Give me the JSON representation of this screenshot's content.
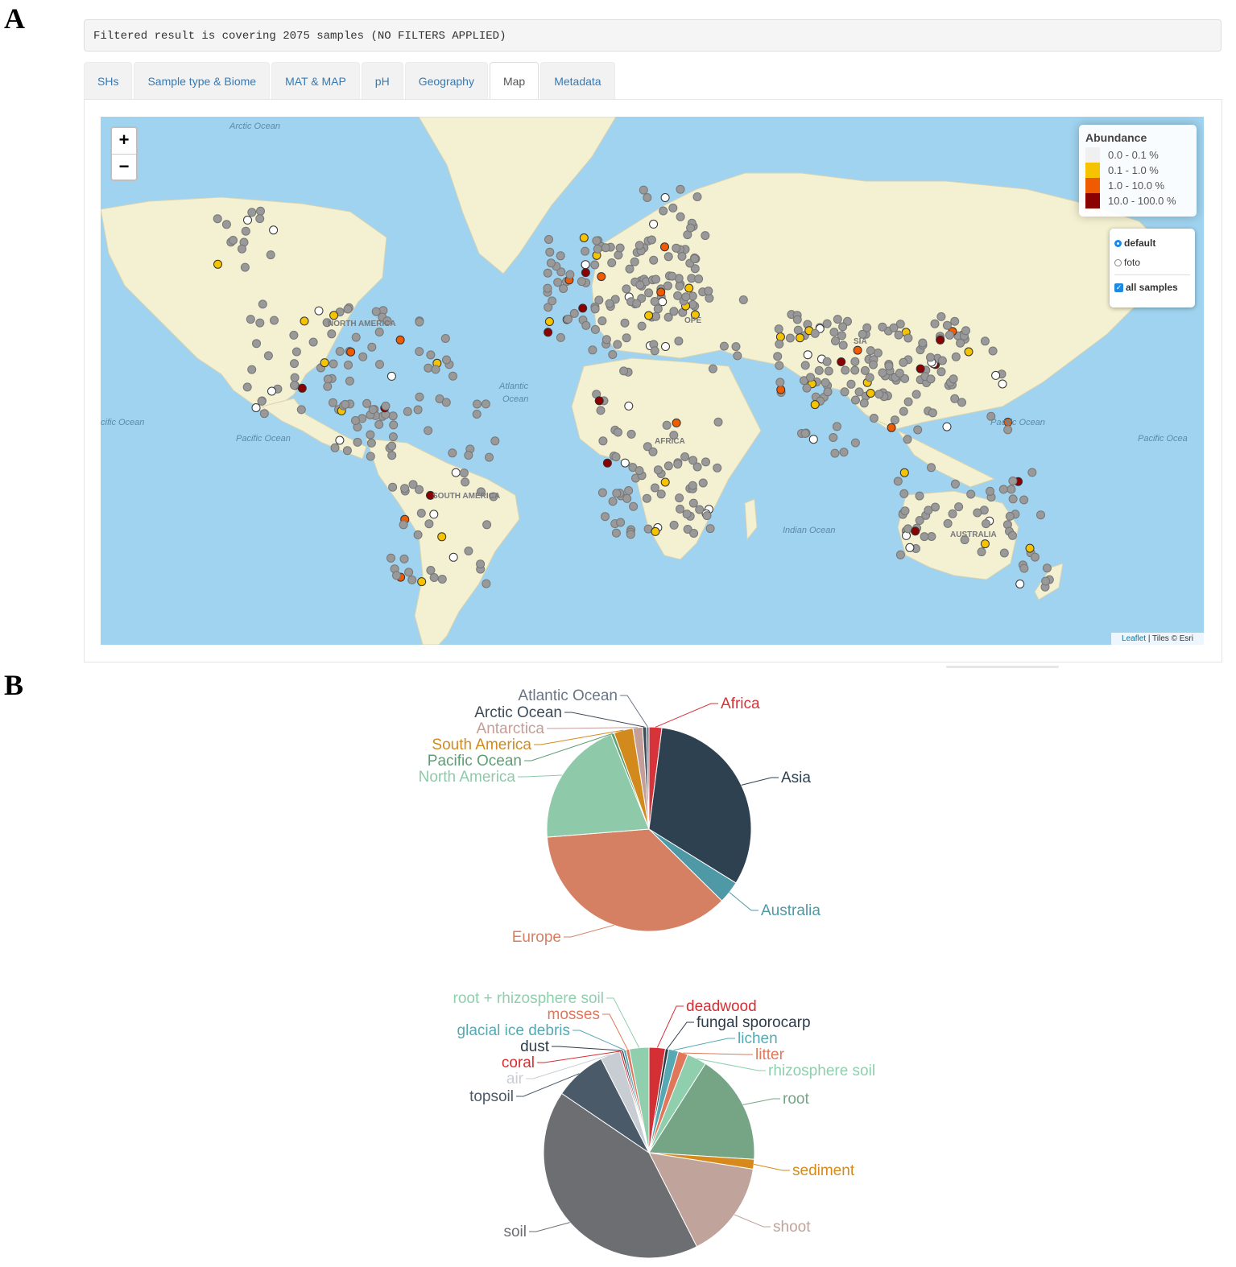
{
  "panels": {
    "a": "A",
    "b": "B"
  },
  "filter": {
    "text": "Filtered result is covering 2075 samples (NO FILTERS APPLIED)"
  },
  "tabs": [
    {
      "label": "SHs",
      "active": false
    },
    {
      "label": "Sample type & Biome",
      "active": false
    },
    {
      "label": "MAT & MAP",
      "active": false
    },
    {
      "label": "pH",
      "active": false
    },
    {
      "label": "Geography",
      "active": false
    },
    {
      "label": "Map",
      "active": true
    },
    {
      "label": "Metadata",
      "active": false
    }
  ],
  "map": {
    "zoom_in": "+",
    "zoom_out": "−",
    "labels": {
      "arctic_ocean": "Arctic Ocean",
      "pacific_ocean_left": "Pacific Ocean",
      "pacific_ocean_left2": "cific Ocean",
      "pacific_ocean_right": "Pacific Ocean",
      "pacific_ocean_right2": "Pacific Ocea",
      "atlantic_1": "Atlantic",
      "atlantic_2": "Ocean",
      "indian_ocean": "Indian Ocean",
      "north_america": "NORTH AMERICA",
      "south_america": "SOUTH AMERICA",
      "europe": "OPE",
      "africa": "AFRICA",
      "asia": "SIA",
      "australia": "AUSTRALIA"
    },
    "colors": {
      "ocean": "#9fd3ef",
      "land": "#f4f0d2",
      "sample": "#999999",
      "white": "#ffffff",
      "low": "#f5c300",
      "mid": "#f05a00",
      "high": "#8b0000"
    }
  },
  "legend": {
    "title": "Abundance",
    "items": [
      {
        "label": "0.0 - 0.1 %",
        "color": "#f0f0f0"
      },
      {
        "label": "0.1 - 1.0 %",
        "color": "#f5c300"
      },
      {
        "label": "1.0 - 10.0 %",
        "color": "#f05a00"
      },
      {
        "label": "10.0 - 100.0 %",
        "color": "#8b0000"
      }
    ]
  },
  "layers": {
    "default": "default",
    "foto": "foto",
    "all_samples": "all samples"
  },
  "attribution": {
    "leaflet": "Leaflet",
    "tiles": "| Tiles © Esri"
  },
  "chart_data": [
    {
      "type": "pie",
      "categories": [
        "Africa",
        "Asia",
        "Australia",
        "Europe",
        "North America",
        "Pacific Ocean",
        "South America",
        "Antarctica",
        "Arctic Ocean",
        "Atlantic Ocean"
      ],
      "values": [
        2.0,
        31.5,
        3.5,
        36.0,
        20.0,
        0.5,
        3.0,
        1.5,
        0.6,
        0.4
      ],
      "colors": [
        "#d6333a",
        "#2e4150",
        "#4e99a5",
        "#d58063",
        "#8ecaa9",
        "#5e9e74",
        "#d28a1d",
        "#c49e98",
        "#3c4a57",
        "#6b7685"
      ]
    },
    {
      "type": "pie",
      "categories": [
        "deadwood",
        "fungal sporocarp",
        "lichen",
        "litter",
        "rhizosphere soil",
        "root",
        "sediment",
        "shoot",
        "soil",
        "topsoil",
        "air",
        "coral",
        "dust",
        "glacial ice debris",
        "mosses",
        "root + rhizosphere soil"
      ],
      "values": [
        2.5,
        0.5,
        1.5,
        1.5,
        3.0,
        17.0,
        1.5,
        15.0,
        42.0,
        8.0,
        3.0,
        0.3,
        0.3,
        0.4,
        0.5,
        3.0
      ],
      "colors": [
        "#d42f34",
        "#2e3c49",
        "#56a8b2",
        "#e0775a",
        "#8fcfad",
        "#75a585",
        "#d68a1c",
        "#c0a39b",
        "#6d6e72",
        "#4a5a68",
        "#c8cdd4",
        "#d42f34",
        "#2e3c49",
        "#56a8b2",
        "#e0775a",
        "#8fcfad"
      ]
    }
  ]
}
